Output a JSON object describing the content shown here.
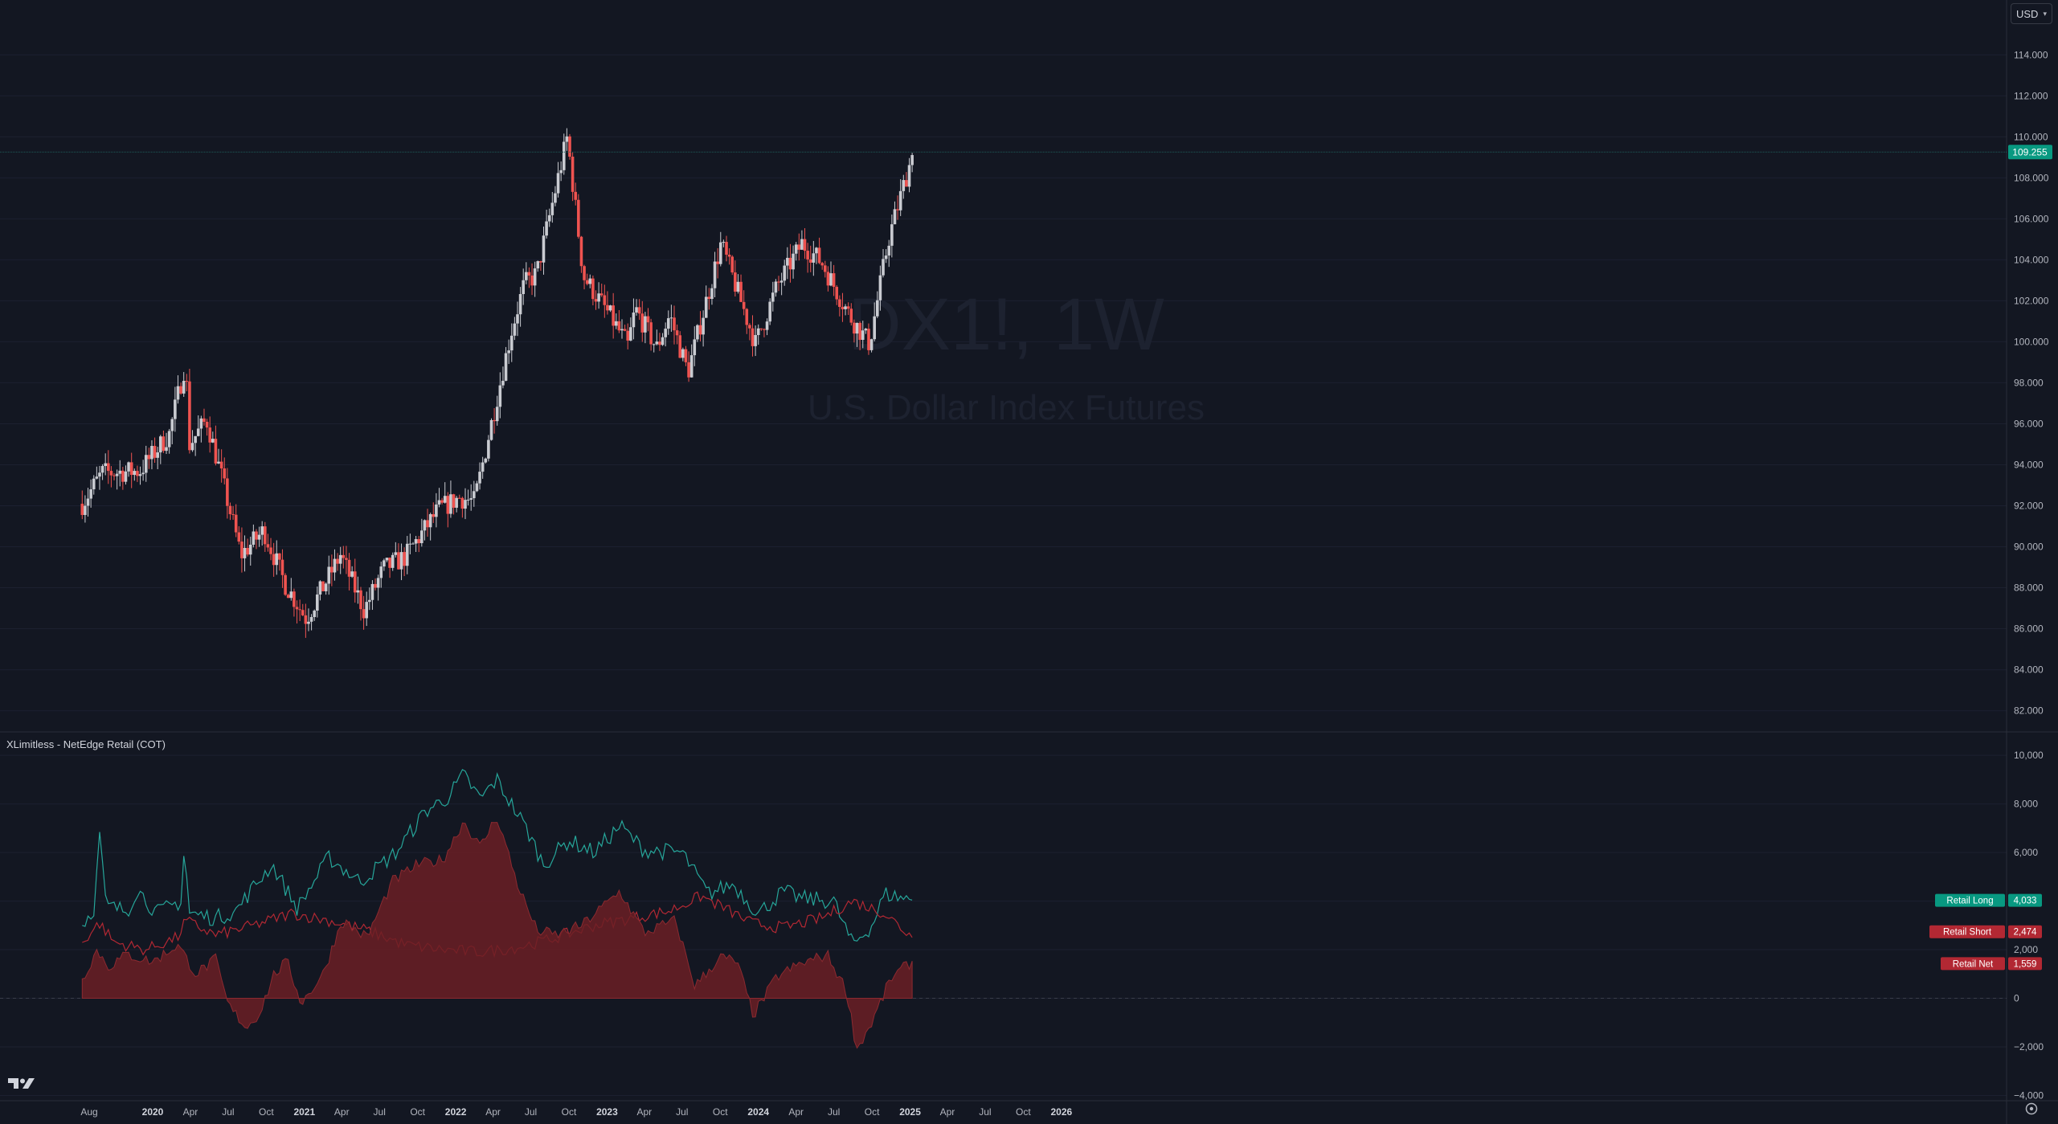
{
  "symbol": {
    "ticker": "DX1!, 1W",
    "name": "U.S. Dollar Index Futures"
  },
  "currency": {
    "label": "USD",
    "icon": "chevron-down-icon"
  },
  "indicator": {
    "title": "XLimitless - NetEdge Retail (COT)"
  },
  "colors": {
    "background": "#131722",
    "up_candle": "#c9cbd1",
    "down_candle": "#ef5350",
    "retail_long": "#26a69a",
    "retail_short": "#b22833",
    "retail_net_fill": "#6b1f24",
    "grid": "#1c2030"
  },
  "chart_data": [
    {
      "type": "candlestick",
      "timeframe": "1W",
      "series_style": "weekly OHLC, approximate",
      "y_axis": {
        "ticks": [
          "114.000",
          "112.000",
          "110.000",
          "108.000",
          "106.000",
          "104.000",
          "102.000",
          "100.000",
          "98.000",
          "96.000",
          "94.000",
          "92.000",
          "90.000",
          "88.000",
          "86.000",
          "84.000",
          "82.000"
        ],
        "ylim": [
          81.2,
          115.5
        ]
      },
      "x_axis": {
        "ticks": [
          "Aug",
          "2020",
          "Apr",
          "Jul",
          "Oct",
          "2021",
          "Apr",
          "Jul",
          "Oct",
          "2022",
          "Apr",
          "Jul",
          "Oct",
          "2023",
          "Apr",
          "Jul",
          "Oct",
          "2024",
          "Apr",
          "Jul",
          "Oct",
          "2025",
          "Apr",
          "Jul",
          "Oct",
          "2026"
        ]
      },
      "last_price": "109.255",
      "price_anchors": [
        {
          "date": "2019-07-15",
          "close": 92.1
        },
        {
          "date": "2019-09-01",
          "close": 93.6
        },
        {
          "date": "2019-12-01",
          "close": 93.7
        },
        {
          "date": "2020-02-10",
          "close": 95.5
        },
        {
          "date": "2020-03-20",
          "close": 99.0
        },
        {
          "date": "2020-03-30",
          "close": 95.0
        },
        {
          "date": "2020-05-10",
          "close": 96.2
        },
        {
          "date": "2020-06-15",
          "close": 93.4
        },
        {
          "date": "2020-08-01",
          "close": 89.6
        },
        {
          "date": "2020-09-25",
          "close": 90.8
        },
        {
          "date": "2020-11-15",
          "close": 88.2
        },
        {
          "date": "2021-01-05",
          "close": 86.5
        },
        {
          "date": "2021-03-29",
          "close": 89.6
        },
        {
          "date": "2021-05-25",
          "close": 86.9
        },
        {
          "date": "2021-07-10",
          "close": 88.9
        },
        {
          "date": "2021-09-01",
          "close": 89.5
        },
        {
          "date": "2021-11-20",
          "close": 91.8
        },
        {
          "date": "2022-01-10",
          "close": 92.4
        },
        {
          "date": "2022-02-15",
          "close": 92.2
        },
        {
          "date": "2022-05-15",
          "close": 100.5
        },
        {
          "date": "2022-06-15",
          "close": 102.8
        },
        {
          "date": "2022-07-15",
          "close": 103.3
        },
        {
          "date": "2022-09-27",
          "close": 110.0
        },
        {
          "date": "2022-11-05",
          "close": 103.2
        },
        {
          "date": "2023-01-10",
          "close": 101.2
        },
        {
          "date": "2023-02-20",
          "close": 99.8
        },
        {
          "date": "2023-03-10",
          "close": 101.6
        },
        {
          "date": "2023-05-01",
          "close": 99.7
        },
        {
          "date": "2023-06-01",
          "close": 101.3
        },
        {
          "date": "2023-07-15",
          "close": 98.5
        },
        {
          "date": "2023-10-03",
          "close": 104.8
        },
        {
          "date": "2023-12-25",
          "close": 99.9
        },
        {
          "date": "2024-02-15",
          "close": 102.7
        },
        {
          "date": "2024-04-15",
          "close": 104.8
        },
        {
          "date": "2024-06-01",
          "close": 103.9
        },
        {
          "date": "2024-08-10",
          "close": 101.2
        },
        {
          "date": "2024-09-25",
          "close": 99.9
        },
        {
          "date": "2024-11-10",
          "close": 105.0
        },
        {
          "date": "2025-01-08",
          "close": 109.255
        }
      ]
    },
    {
      "type": "line",
      "title": "XLimitless - NetEdge Retail (COT)",
      "y_axis": {
        "ticks": [
          "10,000",
          "8,000",
          "6,000",
          "4,000",
          "2,000",
          "0",
          "−2,000",
          "−4,000"
        ],
        "ylim": [
          -4050,
          10500
        ]
      },
      "series": [
        {
          "name": "Retail Long",
          "last": "4,033",
          "anchors": [
            {
              "date": "2019-07-15",
              "value": 3000
            },
            {
              "date": "2019-08-15",
              "value": 3800
            },
            {
              "date": "2019-08-25",
              "value": 7000
            },
            {
              "date": "2019-09-10",
              "value": 3800
            },
            {
              "date": "2019-11-01",
              "value": 3600
            },
            {
              "date": "2019-11-25",
              "value": 4500
            },
            {
              "date": "2020-01-10",
              "value": 3500
            },
            {
              "date": "2020-03-10",
              "value": 4000
            },
            {
              "date": "2020-03-18",
              "value": 6500
            },
            {
              "date": "2020-03-28",
              "value": 3500
            },
            {
              "date": "2020-06-01",
              "value": 3300
            },
            {
              "date": "2020-07-20",
              "value": 3600
            },
            {
              "date": "2020-09-10",
              "value": 4800
            },
            {
              "date": "2020-10-15",
              "value": 5500
            },
            {
              "date": "2020-12-15",
              "value": 3700
            },
            {
              "date": "2021-03-01",
              "value": 5800
            },
            {
              "date": "2021-05-15",
              "value": 4800
            },
            {
              "date": "2021-08-10",
              "value": 6000
            },
            {
              "date": "2021-10-20",
              "value": 7700
            },
            {
              "date": "2021-12-15",
              "value": 8300
            },
            {
              "date": "2022-01-20",
              "value": 9200
            },
            {
              "date": "2022-03-01",
              "value": 8200
            },
            {
              "date": "2022-04-10",
              "value": 9000
            },
            {
              "date": "2022-05-15",
              "value": 8000
            },
            {
              "date": "2022-06-20",
              "value": 7000
            },
            {
              "date": "2022-08-01",
              "value": 5500
            },
            {
              "date": "2022-10-01",
              "value": 6500
            },
            {
              "date": "2022-12-01",
              "value": 6000
            },
            {
              "date": "2023-02-01",
              "value": 7100
            },
            {
              "date": "2023-04-01",
              "value": 6100
            },
            {
              "date": "2023-07-01",
              "value": 6000
            },
            {
              "date": "2023-09-01",
              "value": 4300
            },
            {
              "date": "2023-11-01",
              "value": 4700
            },
            {
              "date": "2024-01-01",
              "value": 3500
            },
            {
              "date": "2024-03-01",
              "value": 4400
            },
            {
              "date": "2024-04-15",
              "value": 4100
            },
            {
              "date": "2024-07-01",
              "value": 4000
            },
            {
              "date": "2024-08-15",
              "value": 2200
            },
            {
              "date": "2024-10-01",
              "value": 3000
            },
            {
              "date": "2024-11-01",
              "value": 4300
            },
            {
              "date": "2025-01-08",
              "value": 4033
            }
          ]
        },
        {
          "name": "Retail Short",
          "last": "2,474",
          "anchors": [
            {
              "date": "2019-07-15",
              "value": 2300
            },
            {
              "date": "2019-08-25",
              "value": 3100
            },
            {
              "date": "2019-10-01",
              "value": 2300
            },
            {
              "date": "2019-12-15",
              "value": 2000
            },
            {
              "date": "2020-03-01",
              "value": 2500
            },
            {
              "date": "2020-03-20",
              "value": 3200
            },
            {
              "date": "2020-06-01",
              "value": 2600
            },
            {
              "date": "2020-09-01",
              "value": 3000
            },
            {
              "date": "2020-12-01",
              "value": 3500
            },
            {
              "date": "2021-03-01",
              "value": 3200
            },
            {
              "date": "2021-06-01",
              "value": 2800
            },
            {
              "date": "2021-09-01",
              "value": 2200
            },
            {
              "date": "2021-12-01",
              "value": 2000
            },
            {
              "date": "2022-03-01",
              "value": 1900
            },
            {
              "date": "2022-06-01",
              "value": 2100
            },
            {
              "date": "2022-09-01",
              "value": 2500
            },
            {
              "date": "2022-12-01",
              "value": 3000
            },
            {
              "date": "2023-03-01",
              "value": 3300
            },
            {
              "date": "2023-06-01",
              "value": 3600
            },
            {
              "date": "2023-08-15",
              "value": 4200
            },
            {
              "date": "2023-10-01",
              "value": 3800
            },
            {
              "date": "2023-12-15",
              "value": 3100
            },
            {
              "date": "2024-03-01",
              "value": 2900
            },
            {
              "date": "2024-06-01",
              "value": 3300
            },
            {
              "date": "2024-08-15",
              "value": 4000
            },
            {
              "date": "2024-11-01",
              "value": 3500
            },
            {
              "date": "2025-01-08",
              "value": 2474
            }
          ]
        },
        {
          "name": "Retail Net",
          "last": "1,559",
          "style": "area",
          "anchors": [
            {
              "date": "2019-07-15",
              "value": 800
            },
            {
              "date": "2019-08-20",
              "value": 2000
            },
            {
              "date": "2019-09-15",
              "value": 1300
            },
            {
              "date": "2019-11-01",
              "value": 1800
            },
            {
              "date": "2020-01-01",
              "value": 1500
            },
            {
              "date": "2020-03-01",
              "value": 2200
            },
            {
              "date": "2020-04-15",
              "value": 1000
            },
            {
              "date": "2020-06-01",
              "value": 1600
            },
            {
              "date": "2020-07-01",
              "value": -300
            },
            {
              "date": "2020-08-15",
              "value": -1200
            },
            {
              "date": "2020-09-15",
              "value": -600
            },
            {
              "date": "2020-10-20",
              "value": 1000
            },
            {
              "date": "2020-11-20",
              "value": 1500
            },
            {
              "date": "2020-12-25",
              "value": -200
            },
            {
              "date": "2021-02-15",
              "value": 1000
            },
            {
              "date": "2021-04-01",
              "value": 3200
            },
            {
              "date": "2021-06-01",
              "value": 2500
            },
            {
              "date": "2021-08-01",
              "value": 4800
            },
            {
              "date": "2021-10-01",
              "value": 5500
            },
            {
              "date": "2021-12-01",
              "value": 5700
            },
            {
              "date": "2022-01-20",
              "value": 7300
            },
            {
              "date": "2022-03-01",
              "value": 6200
            },
            {
              "date": "2022-04-10",
              "value": 7500
            },
            {
              "date": "2022-06-01",
              "value": 4600
            },
            {
              "date": "2022-07-15",
              "value": 2800
            },
            {
              "date": "2022-09-01",
              "value": 2600
            },
            {
              "date": "2022-11-01",
              "value": 3000
            },
            {
              "date": "2023-02-01",
              "value": 4400
            },
            {
              "date": "2023-04-01",
              "value": 2700
            },
            {
              "date": "2023-06-15",
              "value": 3200
            },
            {
              "date": "2023-08-01",
              "value": 500
            },
            {
              "date": "2023-10-01",
              "value": 1700
            },
            {
              "date": "2023-11-10",
              "value": 1500
            },
            {
              "date": "2023-12-20",
              "value": -700
            },
            {
              "date": "2024-02-15",
              "value": 900
            },
            {
              "date": "2024-04-10",
              "value": 1400
            },
            {
              "date": "2024-06-15",
              "value": 1800
            },
            {
              "date": "2024-08-01",
              "value": 300
            },
            {
              "date": "2024-08-25",
              "value": -2100
            },
            {
              "date": "2024-10-01",
              "value": -1000
            },
            {
              "date": "2024-11-15",
              "value": 800
            },
            {
              "date": "2025-01-08",
              "value": 1559
            }
          ]
        }
      ]
    }
  ]
}
